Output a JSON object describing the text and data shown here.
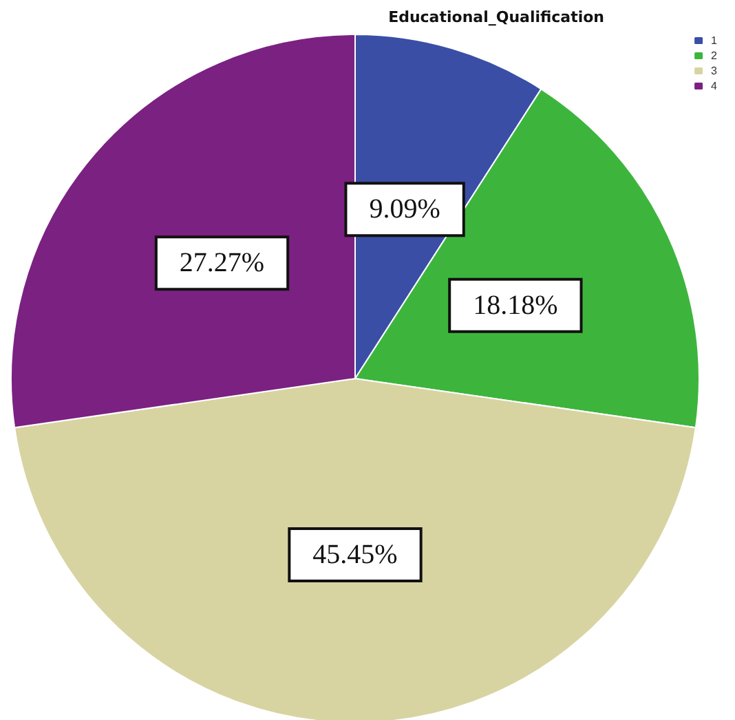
{
  "chart_data": {
    "type": "pie",
    "legend_title": "Educational_Qualification",
    "categories": [
      "1",
      "2",
      "3",
      "4"
    ],
    "values": [
      9.09,
      18.18,
      45.45,
      27.27
    ],
    "colors": [
      "#3b4ea6",
      "#3db53d",
      "#d8d4a2",
      "#7b2182"
    ],
    "value_labels": [
      "9.09%",
      "18.18%",
      "45.45%",
      "27.27%"
    ],
    "legend": "top right"
  }
}
